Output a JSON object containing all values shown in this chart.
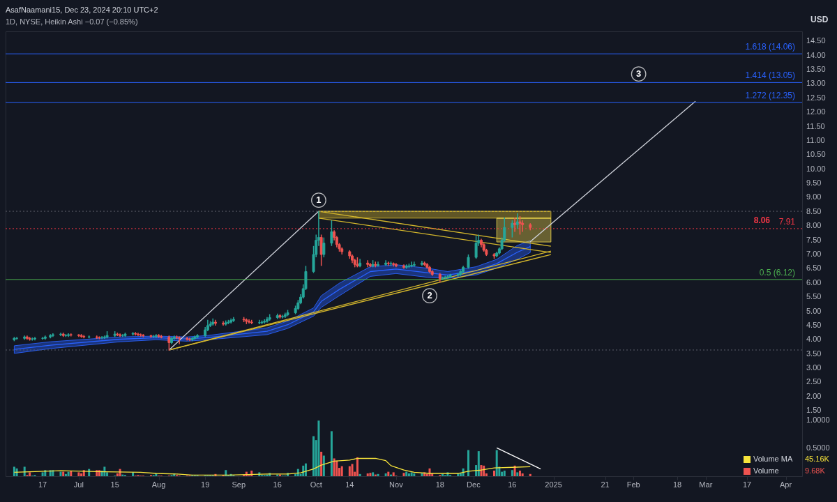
{
  "chart_data": {
    "type": "candlestick",
    "title": "AsafNaamani15, Dec 23, 2024 20:10 UTC+2",
    "subtitle": "1D, NYSE, Heikin Ashi −0.07 (−0.85%)",
    "x": [
      "2024-06-06",
      "2024-06-07",
      "2024-06-10",
      "2024-06-11",
      "2024-06-12",
      "2024-06-13",
      "2024-06-14",
      "2024-06-17",
      "2024-06-18",
      "2024-06-20",
      "2024-06-21",
      "2024-06-24",
      "2024-06-25",
      "2024-06-26",
      "2024-06-27",
      "2024-06-28",
      "2024-07-01",
      "2024-07-02",
      "2024-07-03",
      "2024-07-05",
      "2024-07-08",
      "2024-07-09",
      "2024-07-10",
      "2024-07-11",
      "2024-07-12",
      "2024-07-15",
      "2024-07-16",
      "2024-07-17",
      "2024-07-18",
      "2024-07-19",
      "2024-07-22",
      "2024-07-23",
      "2024-07-24",
      "2024-07-25",
      "2024-07-26",
      "2024-07-29",
      "2024-07-30",
      "2024-07-31",
      "2024-08-01",
      "2024-08-02",
      "2024-08-05",
      "2024-08-06",
      "2024-08-07",
      "2024-08-08",
      "2024-08-09",
      "2024-08-12",
      "2024-08-13",
      "2024-08-14",
      "2024-08-15",
      "2024-08-16",
      "2024-08-19",
      "2024-08-20",
      "2024-08-21",
      "2024-08-22",
      "2024-08-23",
      "2024-08-26",
      "2024-08-27",
      "2024-08-28",
      "2024-08-29",
      "2024-08-30",
      "2024-09-03",
      "2024-09-04",
      "2024-09-05",
      "2024-09-06",
      "2024-09-09",
      "2024-09-10",
      "2024-09-11",
      "2024-09-12",
      "2024-09-13",
      "2024-09-16",
      "2024-09-17",
      "2024-09-18",
      "2024-09-19",
      "2024-09-20",
      "2024-09-23",
      "2024-09-24",
      "2024-09-25",
      "2024-09-26",
      "2024-09-27",
      "2024-09-30",
      "2024-10-01",
      "2024-10-02",
      "2024-10-03",
      "2024-10-04",
      "2024-10-07",
      "2024-10-08",
      "2024-10-09",
      "2024-10-10",
      "2024-10-11",
      "2024-10-14",
      "2024-10-15",
      "2024-10-16",
      "2024-10-17",
      "2024-10-18",
      "2024-10-21",
      "2024-10-22",
      "2024-10-23",
      "2024-10-24",
      "2024-10-25",
      "2024-10-28",
      "2024-10-29",
      "2024-10-30",
      "2024-10-31",
      "2024-11-01",
      "2024-11-04",
      "2024-11-05",
      "2024-11-06",
      "2024-11-07",
      "2024-11-08",
      "2024-11-11",
      "2024-11-12",
      "2024-11-13",
      "2024-11-14",
      "2024-11-15",
      "2024-11-18",
      "2024-11-19",
      "2024-11-20",
      "2024-11-21",
      "2024-11-22",
      "2024-11-25",
      "2024-11-26",
      "2024-11-27",
      "2024-11-29",
      "2024-12-02",
      "2024-12-03",
      "2024-12-04",
      "2024-12-05",
      "2024-12-06",
      "2024-12-09",
      "2024-12-10",
      "2024-12-11",
      "2024-12-12",
      "2024-12-13",
      "2024-12-16",
      "2024-12-17",
      "2024-12-18",
      "2024-12-19",
      "2024-12-20",
      "2024-12-23"
    ],
    "ohlc": [
      [
        4.0,
        4.1,
        3.95,
        4.05
      ],
      [
        4.05,
        4.1,
        4.0,
        4.05
      ],
      [
        4.05,
        4.15,
        4.0,
        4.1
      ],
      [
        4.1,
        4.15,
        4.0,
        4.05
      ],
      [
        4.05,
        4.1,
        3.97,
        4.02
      ],
      [
        4.02,
        4.08,
        3.97,
        4.03
      ],
      [
        4.03,
        4.1,
        3.98,
        4.05
      ],
      [
        4.05,
        4.1,
        4.0,
        4.05
      ],
      [
        4.05,
        4.15,
        4.0,
        4.1
      ],
      [
        4.1,
        4.2,
        4.05,
        4.15
      ],
      [
        4.15,
        4.23,
        4.1,
        4.18
      ],
      [
        4.18,
        4.25,
        4.13,
        4.2
      ],
      [
        4.2,
        4.25,
        4.1,
        4.15
      ],
      [
        4.15,
        4.2,
        4.1,
        4.15
      ],
      [
        4.15,
        4.23,
        4.1,
        4.18
      ],
      [
        4.18,
        4.22,
        4.12,
        4.17
      ],
      [
        4.17,
        4.2,
        4.1,
        4.15
      ],
      [
        4.15,
        4.2,
        4.07,
        4.12
      ],
      [
        4.12,
        4.17,
        4.05,
        4.1
      ],
      [
        4.1,
        4.15,
        4.05,
        4.1
      ],
      [
        4.1,
        4.15,
        4.03,
        4.08
      ],
      [
        4.08,
        4.12,
        4.02,
        4.07
      ],
      [
        4.07,
        4.13,
        4.02,
        4.08
      ],
      [
        4.08,
        4.15,
        4.03,
        4.1
      ],
      [
        4.1,
        4.3,
        4.05,
        4.15
      ],
      [
        4.15,
        4.3,
        4.1,
        4.2
      ],
      [
        4.2,
        4.25,
        4.13,
        4.18
      ],
      [
        4.18,
        4.22,
        4.1,
        4.15
      ],
      [
        4.15,
        4.2,
        4.1,
        4.15
      ],
      [
        4.15,
        4.25,
        4.1,
        4.2
      ],
      [
        4.2,
        4.27,
        4.15,
        4.22
      ],
      [
        4.22,
        4.27,
        4.15,
        4.2
      ],
      [
        4.2,
        4.25,
        4.13,
        4.18
      ],
      [
        4.18,
        4.22,
        4.11,
        4.16
      ],
      [
        4.16,
        4.2,
        4.09,
        4.14
      ],
      [
        4.14,
        4.18,
        4.07,
        4.12
      ],
      [
        4.12,
        4.17,
        4.07,
        4.12
      ],
      [
        4.12,
        4.2,
        4.07,
        4.15
      ],
      [
        4.15,
        4.2,
        4.07,
        4.12
      ],
      [
        4.12,
        4.17,
        4.05,
        4.1
      ],
      [
        4.1,
        4.15,
        3.62,
        3.9
      ],
      [
        3.9,
        4.1,
        3.85,
        4.05
      ],
      [
        4.05,
        4.15,
        4.0,
        4.1
      ],
      [
        4.1,
        4.15,
        4.03,
        4.08
      ],
      [
        4.08,
        4.12,
        3.85,
        4.05
      ],
      [
        4.05,
        4.1,
        3.97,
        4.02
      ],
      [
        4.02,
        4.07,
        3.95,
        4.0
      ],
      [
        4.0,
        4.1,
        3.95,
        4.05
      ],
      [
        4.05,
        4.15,
        4.0,
        4.1
      ],
      [
        4.1,
        4.2,
        4.05,
        4.15
      ],
      [
        4.15,
        4.45,
        4.1,
        4.35
      ],
      [
        4.35,
        4.7,
        4.3,
        4.5
      ],
      [
        4.5,
        4.65,
        4.45,
        4.55
      ],
      [
        4.55,
        4.75,
        4.5,
        4.62
      ],
      [
        4.62,
        4.7,
        4.5,
        4.58
      ],
      [
        4.58,
        4.65,
        4.5,
        4.55
      ],
      [
        4.55,
        4.68,
        4.5,
        4.6
      ],
      [
        4.6,
        4.7,
        4.55,
        4.62
      ],
      [
        4.62,
        4.75,
        4.57,
        4.68
      ],
      [
        4.68,
        4.8,
        4.63,
        4.72
      ],
      [
        4.72,
        4.8,
        4.62,
        4.7
      ],
      [
        4.7,
        4.75,
        4.55,
        4.65
      ],
      [
        4.65,
        4.72,
        4.57,
        4.62
      ],
      [
        4.62,
        4.7,
        4.55,
        4.6
      ],
      [
        4.6,
        4.7,
        4.55,
        4.6
      ],
      [
        4.6,
        4.68,
        4.55,
        4.62
      ],
      [
        4.62,
        4.72,
        4.57,
        4.65
      ],
      [
        4.65,
        4.8,
        4.6,
        4.72
      ],
      [
        4.72,
        4.9,
        4.67,
        4.78
      ],
      [
        4.78,
        4.92,
        4.73,
        4.85
      ],
      [
        4.85,
        4.9,
        4.75,
        4.8
      ],
      [
        4.8,
        4.88,
        4.75,
        4.82
      ],
      [
        4.82,
        4.95,
        4.77,
        4.88
      ],
      [
        4.88,
        5.05,
        4.83,
        4.95
      ],
      [
        4.95,
        5.2,
        4.9,
        5.1
      ],
      [
        5.1,
        5.4,
        5.05,
        5.3
      ],
      [
        5.3,
        5.6,
        5.25,
        5.5
      ],
      [
        5.5,
        5.95,
        5.45,
        5.8
      ],
      [
        5.8,
        6.6,
        5.75,
        6.4
      ],
      [
        6.4,
        7.3,
        6.35,
        7.0
      ],
      [
        7.0,
        7.7,
        6.9,
        7.5
      ],
      [
        7.5,
        8.52,
        7.3,
        7.6
      ],
      [
        7.6,
        7.7,
        6.6,
        7.0
      ],
      [
        7.0,
        7.6,
        6.9,
        7.4
      ],
      [
        7.4,
        8.2,
        7.3,
        7.8
      ],
      [
        7.8,
        7.85,
        7.5,
        7.6
      ],
      [
        7.6,
        7.65,
        7.25,
        7.35
      ],
      [
        7.35,
        7.4,
        7.1,
        7.2
      ],
      [
        7.2,
        7.25,
        7.0,
        7.1
      ],
      [
        7.1,
        7.15,
        6.85,
        6.95
      ],
      [
        6.95,
        7.0,
        6.7,
        6.8
      ],
      [
        6.8,
        6.85,
        6.55,
        6.65
      ],
      [
        6.65,
        6.9,
        6.55,
        6.6
      ],
      [
        6.6,
        6.85,
        6.55,
        6.7
      ],
      [
        6.7,
        6.8,
        6.55,
        6.65
      ],
      [
        6.65,
        6.7,
        6.55,
        6.6
      ],
      [
        6.6,
        6.8,
        6.55,
        6.65
      ],
      [
        6.65,
        6.75,
        6.55,
        6.62
      ],
      [
        6.62,
        6.75,
        6.57,
        6.65
      ],
      [
        6.65,
        6.8,
        6.6,
        6.7
      ],
      [
        6.7,
        6.75,
        6.6,
        6.68
      ],
      [
        6.68,
        6.75,
        6.6,
        6.68
      ],
      [
        6.68,
        6.72,
        6.58,
        6.65
      ],
      [
        6.65,
        6.7,
        6.55,
        6.6
      ],
      [
        6.6,
        6.65,
        6.5,
        6.55
      ],
      [
        6.55,
        6.65,
        6.5,
        6.58
      ],
      [
        6.58,
        6.68,
        6.53,
        6.6
      ],
      [
        6.6,
        6.75,
        6.55,
        6.62
      ],
      [
        6.62,
        6.75,
        6.57,
        6.65
      ],
      [
        6.65,
        6.78,
        6.6,
        6.7
      ],
      [
        6.7,
        6.75,
        6.6,
        6.65
      ],
      [
        6.65,
        6.7,
        6.5,
        6.55
      ],
      [
        6.55,
        6.6,
        6.35,
        6.4
      ],
      [
        6.4,
        6.45,
        6.25,
        6.3
      ],
      [
        6.3,
        6.35,
        6.02,
        6.15
      ],
      [
        6.15,
        6.22,
        6.1,
        6.18
      ],
      [
        6.18,
        6.25,
        6.13,
        6.2
      ],
      [
        6.2,
        6.27,
        6.15,
        6.22
      ],
      [
        6.22,
        6.32,
        6.17,
        6.27
      ],
      [
        6.27,
        6.35,
        6.22,
        6.3
      ],
      [
        6.3,
        6.45,
        6.25,
        6.4
      ],
      [
        6.4,
        6.6,
        6.35,
        6.55
      ],
      [
        6.55,
        7.0,
        6.5,
        6.9
      ],
      [
        6.9,
        7.65,
        6.85,
        7.4
      ],
      [
        7.4,
        7.7,
        7.3,
        7.5
      ],
      [
        7.5,
        7.55,
        7.25,
        7.35
      ],
      [
        7.35,
        7.4,
        7.1,
        7.15
      ],
      [
        7.15,
        7.2,
        6.95,
        7.0
      ],
      [
        7.0,
        7.05,
        6.85,
        6.95
      ],
      [
        6.95,
        7.1,
        6.9,
        7.05
      ],
      [
        7.05,
        7.25,
        7.0,
        7.2
      ],
      [
        7.2,
        7.6,
        7.15,
        7.5
      ],
      [
        7.5,
        8.3,
        7.45,
        7.95
      ],
      [
        7.95,
        8.2,
        7.6,
        8.1
      ],
      [
        8.1,
        8.3,
        7.8,
        8.05
      ],
      [
        8.05,
        8.45,
        7.9,
        8.15
      ],
      [
        8.15,
        8.35,
        7.7,
        8.1
      ],
      [
        8.1,
        8.2,
        7.8,
        8.05
      ],
      [
        8.05,
        8.1,
        7.85,
        7.95
      ]
    ],
    "xlim": [
      "2024-06-04",
      "2025-04-06"
    ],
    "xticks": [
      {
        "value": "2024-06-17",
        "label": "17"
      },
      {
        "value": "2024-07-01",
        "label": "Jul"
      },
      {
        "value": "2024-07-15",
        "label": "15"
      },
      {
        "value": "2024-08-01",
        "label": "Aug"
      },
      {
        "value": "2024-08-19",
        "label": "19"
      },
      {
        "value": "2024-09-01",
        "label": "Sep"
      },
      {
        "value": "2024-09-16",
        "label": "16"
      },
      {
        "value": "2024-10-01",
        "label": "Oct"
      },
      {
        "value": "2024-10-14",
        "label": "14"
      },
      {
        "value": "2024-11-01",
        "label": "Nov"
      },
      {
        "value": "2024-11-18",
        "label": "18"
      },
      {
        "value": "2024-12-01",
        "label": "Dec"
      },
      {
        "value": "2024-12-16",
        "label": "16"
      },
      {
        "value": "2025-01-01",
        "label": "2025"
      },
      {
        "value": "2025-01-21",
        "label": "21"
      },
      {
        "value": "2025-02-01",
        "label": "Feb"
      },
      {
        "value": "2025-02-18",
        "label": "18"
      },
      {
        "value": "2025-03-01",
        "label": "Mar"
      },
      {
        "value": "2025-03-17",
        "label": "17"
      },
      {
        "value": "2025-04-01",
        "label": "Apr"
      }
    ],
    "ylim": [
      -0.8,
      14.85
    ],
    "yticks": [
      {
        "value": 1.5,
        "label": "1.50"
      },
      {
        "value": 2,
        "label": "2.00"
      },
      {
        "value": 2.5,
        "label": "2.50"
      },
      {
        "value": 3,
        "label": "3.00"
      },
      {
        "value": 3.5,
        "label": "3.50"
      },
      {
        "value": 4,
        "label": "4.00"
      },
      {
        "value": 4.5,
        "label": "4.50"
      },
      {
        "value": 5,
        "label": "5.00"
      },
      {
        "value": 5.5,
        "label": "5.50"
      },
      {
        "value": 6,
        "label": "6.00"
      },
      {
        "value": 6.5,
        "label": "6.50"
      },
      {
        "value": 7,
        "label": "7.00"
      },
      {
        "value": 7.5,
        "label": "7.50"
      },
      {
        "value": 8,
        "label": "8.00"
      },
      {
        "value": 8.5,
        "label": "8.50"
      },
      {
        "value": 9,
        "label": "9.00"
      },
      {
        "value": 9.5,
        "label": "9.50"
      },
      {
        "value": 10,
        "label": "10.00"
      },
      {
        "value": 10.5,
        "label": "10.50"
      },
      {
        "value": 11,
        "label": "11.00"
      },
      {
        "value": 11.5,
        "label": "11.50"
      },
      {
        "value": 12,
        "label": "12.00"
      },
      {
        "value": 12.5,
        "label": "12.50"
      },
      {
        "value": 13,
        "label": "13.00"
      },
      {
        "value": 13.5,
        "label": "13.50"
      },
      {
        "value": 14,
        "label": "14.00"
      },
      {
        "value": 14.5,
        "label": "14.50"
      }
    ],
    "y2lim": [
      0,
      8
    ],
    "y2ticks": [
      {
        "value": 0.5,
        "label": "0.5000"
      },
      {
        "value": 1,
        "label": "1.0000"
      }
    ],
    "legend": "bottom right",
    "series": [
      {
        "type": "line",
        "color": "#2962ff",
        "x": [
          "2024-06-06",
          "2024-06-20",
          "2024-07-17",
          "2024-07-31",
          "2024-08-12",
          "2024-08-20",
          "2024-09-12",
          "2024-09-20",
          "2024-09-30",
          "2024-10-03",
          "2024-10-10",
          "2024-10-22",
          "2024-11-01",
          "2024-11-13",
          "2024-11-21",
          "2024-12-02",
          "2024-12-10",
          "2024-12-18",
          "2024-12-23"
        ],
        "values": [
          3.66,
          3.81,
          4.02,
          4.07,
          4.03,
          4.08,
          4.3,
          4.53,
          4.98,
          5.35,
          5.77,
          6.4,
          6.49,
          6.36,
          6.28,
          6.43,
          6.68,
          7.08,
          7.28
        ],
        "lower": [
          3.52,
          3.69,
          3.93,
          4.0,
          3.95,
          4.0,
          4.18,
          4.4,
          4.83,
          5.14,
          5.55,
          6.23,
          6.33,
          6.2,
          6.16,
          6.28,
          6.52,
          6.83,
          7.07
        ],
        "upper": [
          3.79,
          3.93,
          4.1,
          4.13,
          4.1,
          4.15,
          4.42,
          4.66,
          5.12,
          5.55,
          5.99,
          6.57,
          6.64,
          6.52,
          6.4,
          6.57,
          6.83,
          7.32,
          7.49
        ]
      },
      {
        "type": "line",
        "color": "#d4b72c",
        "x": [
          "2024-10-02",
          "2024-12-31"
        ],
        "values": [
          8.52,
          7.29
        ]
      },
      {
        "type": "line",
        "color": "#d4b72c",
        "x": [
          "2024-10-02",
          "2024-12-31"
        ],
        "values": [
          8.28,
          7.07
        ]
      },
      {
        "type": "line",
        "color": "#d4b72c",
        "x": [
          "2024-08-05",
          "2024-12-31"
        ],
        "values": [
          3.64,
          7.0
        ]
      },
      {
        "type": "line",
        "color": "#d4b72c",
        "x": [
          "2024-08-05",
          "2024-12-31"
        ],
        "values": [
          3.64,
          7.12
        ]
      },
      {
        "type": "line",
        "color": "#d4b72c",
        "x": [
          "2024-10-02",
          "2024-12-31"
        ],
        "values": [
          8.52,
          8.52
        ],
        "lower": [
          8.28,
          8.28
        ],
        "upper": [
          8.52,
          8.52
        ]
      },
      {
        "type": "line",
        "color": "#e6cf4a",
        "x": [
          "2024-12-10",
          "2024-12-31"
        ],
        "values": [
          8.28,
          8.28
        ],
        "lower": [
          7.44,
          7.44
        ],
        "upper": [
          8.28,
          8.28
        ]
      },
      {
        "type": "line",
        "color": "#d1d4dc",
        "x": [
          "2024-08-05",
          "2024-10-02"
        ],
        "values": [
          3.64,
          8.52
        ]
      },
      {
        "type": "line",
        "color": "#d1d4dc",
        "x": [
          "2024-12-23",
          "2025-02-25"
        ],
        "values": [
          7.45,
          12.39
        ]
      },
      {
        "name": "Volume",
        "type": "bar",
        "axis": "y2",
        "colors": [
          "#26a69a",
          "#26a69a",
          "#26a69a",
          "#ef5350",
          "#ef5350",
          "#26a69a",
          "#26a69a",
          "#26a69a",
          "#26a69a",
          "#26a69a",
          "#26a69a",
          "#26a69a",
          "#ef5350",
          "#26a69a",
          "#26a69a",
          "#ef5350",
          "#ef5350",
          "#ef5350",
          "#ef5350",
          "#26a69a",
          "#ef5350",
          "#ef5350",
          "#26a69a",
          "#26a69a",
          "#26a69a",
          "#26a69a",
          "#ef5350",
          "#ef5350",
          "#26a69a",
          "#26a69a",
          "#26a69a",
          "#ef5350",
          "#ef5350",
          "#ef5350",
          "#ef5350",
          "#ef5350",
          "#26a69a",
          "#26a69a",
          "#ef5350",
          "#ef5350",
          "#ef5350",
          "#26a69a",
          "#26a69a",
          "#ef5350",
          "#ef5350",
          "#ef5350",
          "#ef5350",
          "#26a69a",
          "#26a69a",
          "#26a69a",
          "#26a69a",
          "#26a69a",
          "#26a69a",
          "#26a69a",
          "#ef5350",
          "#ef5350",
          "#26a69a",
          "#26a69a",
          "#26a69a",
          "#26a69a",
          "#ef5350",
          "#ef5350",
          "#ef5350",
          "#ef5350",
          "#26a69a",
          "#26a69a",
          "#26a69a",
          "#26a69a",
          "#26a69a",
          "#26a69a",
          "#ef5350",
          "#26a69a",
          "#26a69a",
          "#26a69a",
          "#26a69a",
          "#26a69a",
          "#26a69a",
          "#26a69a",
          "#26a69a",
          "#26a69a",
          "#26a69a",
          "#26a69a",
          "#ef5350",
          "#26a69a",
          "#26a69a",
          "#ef5350",
          "#ef5350",
          "#ef5350",
          "#ef5350",
          "#ef5350",
          "#ef5350",
          "#ef5350",
          "#ef5350",
          "#26a69a",
          "#ef5350",
          "#ef5350",
          "#26a69a",
          "#ef5350",
          "#26a69a",
          "#26a69a",
          "#ef5350",
          "#26a69a",
          "#ef5350",
          "#ef5350",
          "#ef5350",
          "#26a69a",
          "#26a69a",
          "#26a69a",
          "#26a69a",
          "#26a69a",
          "#ef5350",
          "#ef5350",
          "#ef5350",
          "#ef5350",
          "#ef5350",
          "#26a69a",
          "#26a69a",
          "#26a69a",
          "#26a69a",
          "#26a69a",
          "#26a69a",
          "#26a69a",
          "#26a69a",
          "#26a69a",
          "#26a69a",
          "#ef5350",
          "#ef5350",
          "#ef5350",
          "#ef5350",
          "#26a69a",
          "#26a69a",
          "#26a69a",
          "#26a69a",
          "#26a69a",
          "#ef5350",
          "#26a69a",
          "#ef5350",
          "#ef5350",
          "#ef5350"
        ],
        "x": [
          "2024-06-06",
          "2024-06-07",
          "2024-06-10",
          "2024-06-11",
          "2024-06-12",
          "2024-06-13",
          "2024-06-14",
          "2024-06-17",
          "2024-06-18",
          "2024-06-20",
          "2024-06-21",
          "2024-06-24",
          "2024-06-25",
          "2024-06-26",
          "2024-06-27",
          "2024-06-28",
          "2024-07-01",
          "2024-07-02",
          "2024-07-03",
          "2024-07-05",
          "2024-07-08",
          "2024-07-09",
          "2024-07-10",
          "2024-07-11",
          "2024-07-12",
          "2024-07-15",
          "2024-07-16",
          "2024-07-17",
          "2024-07-18",
          "2024-07-19",
          "2024-07-22",
          "2024-07-23",
          "2024-07-24",
          "2024-07-25",
          "2024-07-26",
          "2024-07-29",
          "2024-07-30",
          "2024-07-31",
          "2024-08-01",
          "2024-08-02",
          "2024-08-05",
          "2024-08-06",
          "2024-08-07",
          "2024-08-08",
          "2024-08-09",
          "2024-08-12",
          "2024-08-13",
          "2024-08-14",
          "2024-08-15",
          "2024-08-16",
          "2024-08-19",
          "2024-08-20",
          "2024-08-21",
          "2024-08-22",
          "2024-08-23",
          "2024-08-26",
          "2024-08-27",
          "2024-08-28",
          "2024-08-29",
          "2024-08-30",
          "2024-09-03",
          "2024-09-04",
          "2024-09-05",
          "2024-09-06",
          "2024-09-09",
          "2024-09-10",
          "2024-09-11",
          "2024-09-12",
          "2024-09-13",
          "2024-09-16",
          "2024-09-17",
          "2024-09-18",
          "2024-09-19",
          "2024-09-20",
          "2024-09-23",
          "2024-09-24",
          "2024-09-25",
          "2024-09-26",
          "2024-09-27",
          "2024-09-30",
          "2024-10-01",
          "2024-10-02",
          "2024-10-03",
          "2024-10-04",
          "2024-10-07",
          "2024-10-08",
          "2024-10-09",
          "2024-10-10",
          "2024-10-11",
          "2024-10-14",
          "2024-10-15",
          "2024-10-16",
          "2024-10-17",
          "2024-10-18",
          "2024-10-21",
          "2024-10-22",
          "2024-10-23",
          "2024-10-24",
          "2024-10-25",
          "2024-10-28",
          "2024-10-29",
          "2024-10-30",
          "2024-10-31",
          "2024-11-01",
          "2024-11-04",
          "2024-11-05",
          "2024-11-06",
          "2024-11-07",
          "2024-11-08",
          "2024-11-11",
          "2024-11-12",
          "2024-11-13",
          "2024-11-14",
          "2024-11-15",
          "2024-11-18",
          "2024-11-19",
          "2024-11-20",
          "2024-11-21",
          "2024-11-22",
          "2024-11-25",
          "2024-11-26",
          "2024-11-27",
          "2024-11-29",
          "2024-12-02",
          "2024-12-03",
          "2024-12-04",
          "2024-12-05",
          "2024-12-06",
          "2024-12-09",
          "2024-12-10",
          "2024-12-11",
          "2024-12-12",
          "2024-12-13",
          "2024-12-16",
          "2024-12-17",
          "2024-12-18",
          "2024-12-19",
          "2024-12-20",
          "2024-12-23"
        ],
        "values": [
          0.17,
          0.14,
          0.17,
          0.02,
          0.07,
          0.01,
          0.02,
          0.07,
          0.11,
          0.11,
          0.11,
          0.08,
          0.08,
          0.04,
          0.08,
          0.09,
          0.07,
          0.05,
          0.11,
          0.13,
          0.11,
          0.11,
          0.1,
          0.17,
          0.07,
          0.01,
          0.05,
          0.13,
          0.03,
          0.02,
          0.07,
          0.01,
          0.02,
          0.01,
          0.01,
          0.02,
          0.02,
          0.05,
          0.01,
          0.01,
          0.01,
          0.02,
          0.05,
          0.02,
          0.01,
          0.01,
          0.01,
          0.01,
          0.01,
          0.01,
          0.01,
          0.01,
          0.01,
          0.01,
          0.04,
          0.02,
          0.11,
          0.02,
          0.04,
          0.02,
          0.03,
          0.08,
          0.02,
          0.1,
          0.07,
          0.02,
          0.02,
          0.03,
          0.06,
          0.03,
          0.03,
          0.01,
          0.01,
          0.06,
          0.04,
          0.13,
          0.04,
          0.19,
          0.23,
          0.72,
          0.65,
          1,
          0.44,
          0.37,
          0.81,
          0.32,
          0.28,
          0.15,
          0.18,
          0.18,
          0.22,
          0.08,
          0.34,
          0.04,
          0.05,
          0.06,
          0.07,
          0.03,
          0.04,
          0.05,
          0.08,
          0.03,
          0.07,
          0.01,
          0.06,
          0.08,
          0.05,
          0.07,
          0.05,
          0.05,
          0.07,
          0.04,
          0.14,
          0.05,
          0.02,
          0.04,
          0.02,
          0.07,
          0.02,
          0.05,
          0.05,
          0.14,
          0.47,
          0.2,
          0.45,
          0.2,
          0.19,
          0.05,
          0.1,
          0.47,
          0.17,
          0.08,
          0.1,
          0.11,
          0.19,
          0.07,
          0.1,
          0.05,
          0.04
        ]
      },
      {
        "name": "Volume MA",
        "type": "line",
        "axis": "y2",
        "color": "#f7e43b",
        "x": [
          "2024-06-06",
          "2024-06-24",
          "2024-07-11",
          "2024-07-25",
          "2024-07-31",
          "2024-08-08",
          "2024-08-14",
          "2024-08-28",
          "2024-09-12",
          "2024-09-20",
          "2024-09-25",
          "2024-09-30",
          "2024-10-03",
          "2024-10-08",
          "2024-10-14",
          "2024-10-17",
          "2024-10-24",
          "2024-10-28",
          "2024-10-30",
          "2024-11-04",
          "2024-11-08",
          "2024-11-14",
          "2024-11-25",
          "2024-11-29",
          "2024-12-04",
          "2024-12-09",
          "2024-12-16",
          "2024-12-23"
        ],
        "values": [
          0.07,
          0.1,
          0.08,
          0.07,
          0.05,
          0.04,
          0.02,
          0.02,
          0.04,
          0.04,
          0.06,
          0.13,
          0.2,
          0.27,
          0.29,
          0.32,
          0.32,
          0.28,
          0.19,
          0.11,
          0.07,
          0.05,
          0.05,
          0.09,
          0.11,
          0.15,
          0.16,
          0.17
        ]
      },
      {
        "type": "line",
        "axis": "y2",
        "color": "#ffffff",
        "x": [
          "2024-12-10",
          "2024-12-27"
        ],
        "values": [
          0.51,
          0.13
        ]
      }
    ],
    "ref_lines": [
      {
        "axis": "y",
        "value": 14.06,
        "label": "1.618 (14.06)",
        "color": "#2962ff",
        "line_style": "solid"
      },
      {
        "axis": "y",
        "value": 13.05,
        "label": "1.414 (13.05)",
        "color": "#2962ff",
        "line_style": "solid"
      },
      {
        "axis": "y",
        "value": 12.35,
        "label": "1.272 (12.35)",
        "color": "#2962ff",
        "line_style": "solid"
      },
      {
        "axis": "y",
        "value": 6.12,
        "label": "0.5 (6.12)",
        "color": "#4caf50",
        "line_style": "solid"
      },
      {
        "axis": "y",
        "value": 8.52,
        "color": "#5d606b",
        "line_style": "dotted"
      },
      {
        "axis": "y",
        "value": 3.64,
        "color": "#5d606b",
        "line_style": "dotted"
      },
      {
        "axis": "y",
        "value": 7.91,
        "label": "7.91",
        "color": "#f23645",
        "line_style": "dotted"
      }
    ],
    "annotations": [
      {
        "text": "1",
        "x": "2024-10-02",
        "y": 8.91
      },
      {
        "text": "2",
        "x": "2024-11-14",
        "y": 5.55
      },
      {
        "text": "3",
        "x": "2025-02-03",
        "y": 13.35
      },
      "8.06",
      "USD",
      "45.16K",
      "9.68K"
    ]
  }
}
